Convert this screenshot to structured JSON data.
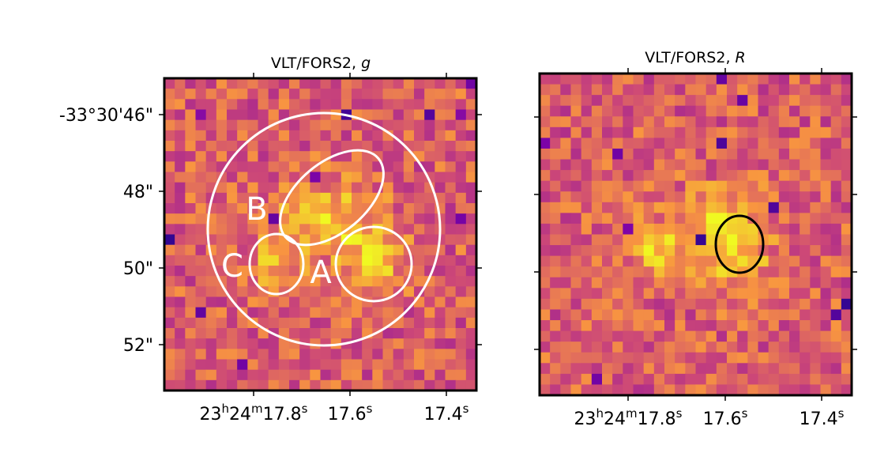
{
  "panels": [
    {
      "id": "g",
      "title_prefix": "VLT/FORS2, ",
      "title_band": "g",
      "seed": 7,
      "y_labels": [
        "-33°30'46\"",
        "48\"",
        "50\"",
        "52\""
      ],
      "x_labels": [
        {
          "parts": [
            [
              "23",
              ""
            ],
            [
              "h",
              "sup"
            ],
            [
              "24",
              ""
            ],
            [
              "m",
              "sup"
            ],
            [
              "17.8",
              ""
            ],
            [
              "s",
              "sup"
            ]
          ]
        },
        {
          "parts": [
            [
              "17.6",
              ""
            ],
            [
              "s",
              "sup"
            ]
          ]
        },
        {
          "parts": [
            [
              "17.4",
              ""
            ],
            [
              "s",
              "sup"
            ]
          ]
        }
      ],
      "regions": [
        {
          "name": "aperture-circle",
          "label": ""
        },
        {
          "name": "region-b-ellipse",
          "label": "B"
        },
        {
          "name": "region-c-ellipse",
          "label": "C"
        },
        {
          "name": "region-a-ellipse",
          "label": "A"
        }
      ]
    },
    {
      "id": "R",
      "title_prefix": "VLT/FORS2, ",
      "title_band": "R",
      "seed": 21,
      "y_labels": [],
      "x_labels": [
        {
          "parts": [
            [
              "23",
              ""
            ],
            [
              "h",
              "sup"
            ],
            [
              "24",
              ""
            ],
            [
              "m",
              "sup"
            ],
            [
              "17.8",
              ""
            ],
            [
              "s",
              "sup"
            ]
          ]
        },
        {
          "parts": [
            [
              "17.6",
              ""
            ],
            [
              "s",
              "sup"
            ]
          ]
        },
        {
          "parts": [
            [
              "17.4",
              ""
            ],
            [
              "s",
              "sup"
            ]
          ]
        }
      ],
      "regions": [
        {
          "name": "host-aperture-ellipse",
          "label": ""
        }
      ]
    }
  ],
  "colormap": "plasma",
  "colors": {
    "region_white": "#ffffff",
    "region_black": "#000000",
    "frame": "#000000"
  }
}
